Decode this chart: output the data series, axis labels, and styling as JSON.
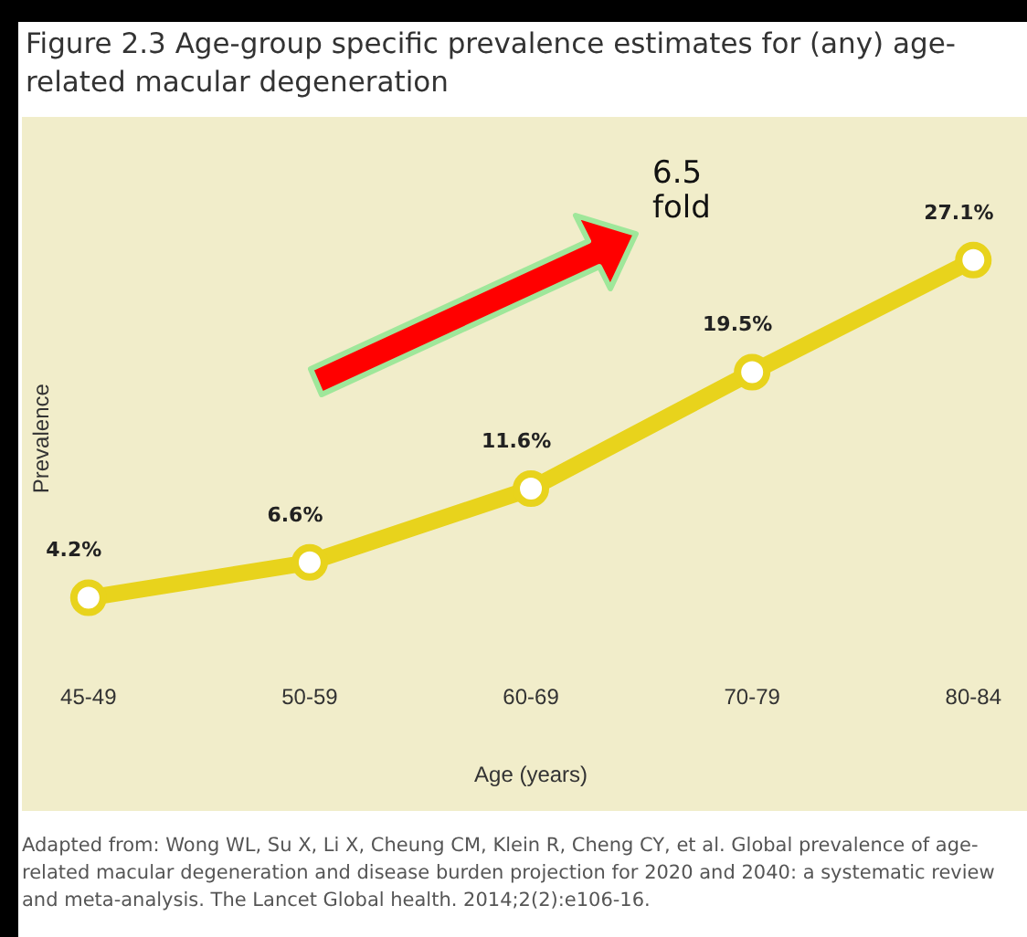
{
  "chart_data": {
    "type": "line",
    "title": "Figure 2.3 Age-group specific prevalence estimates for (any) age-related macular degeneration",
    "xlabel": "Age (years)",
    "ylabel": "Prevalence",
    "categories": [
      "45-49",
      "50-59",
      "60-69",
      "70-79",
      "80-84"
    ],
    "series": [
      {
        "color": "#e8d31c",
        "values": [
          4.2,
          6.6,
          11.6,
          19.5,
          27.1
        ],
        "value_labels": [
          "4.2%",
          "6.6%",
          "11.6%",
          "19.5%",
          "27.1%"
        ]
      }
    ],
    "marker": "circle",
    "grid": false,
    "legend": false,
    "tick_labels": "x",
    "annotations": [
      "6.5\nfold",
      "Adapted from: Wong WL, Su X, Li X, Cheung CM, Klein R, Cheng CY, et al. Global prevalence of age-related macular degeneration and disease burden projection for 2020 and 2040: a systematic review and meta-analysis. The Lancet Global health. 2014;2(2):e106-16."
    ]
  }
}
